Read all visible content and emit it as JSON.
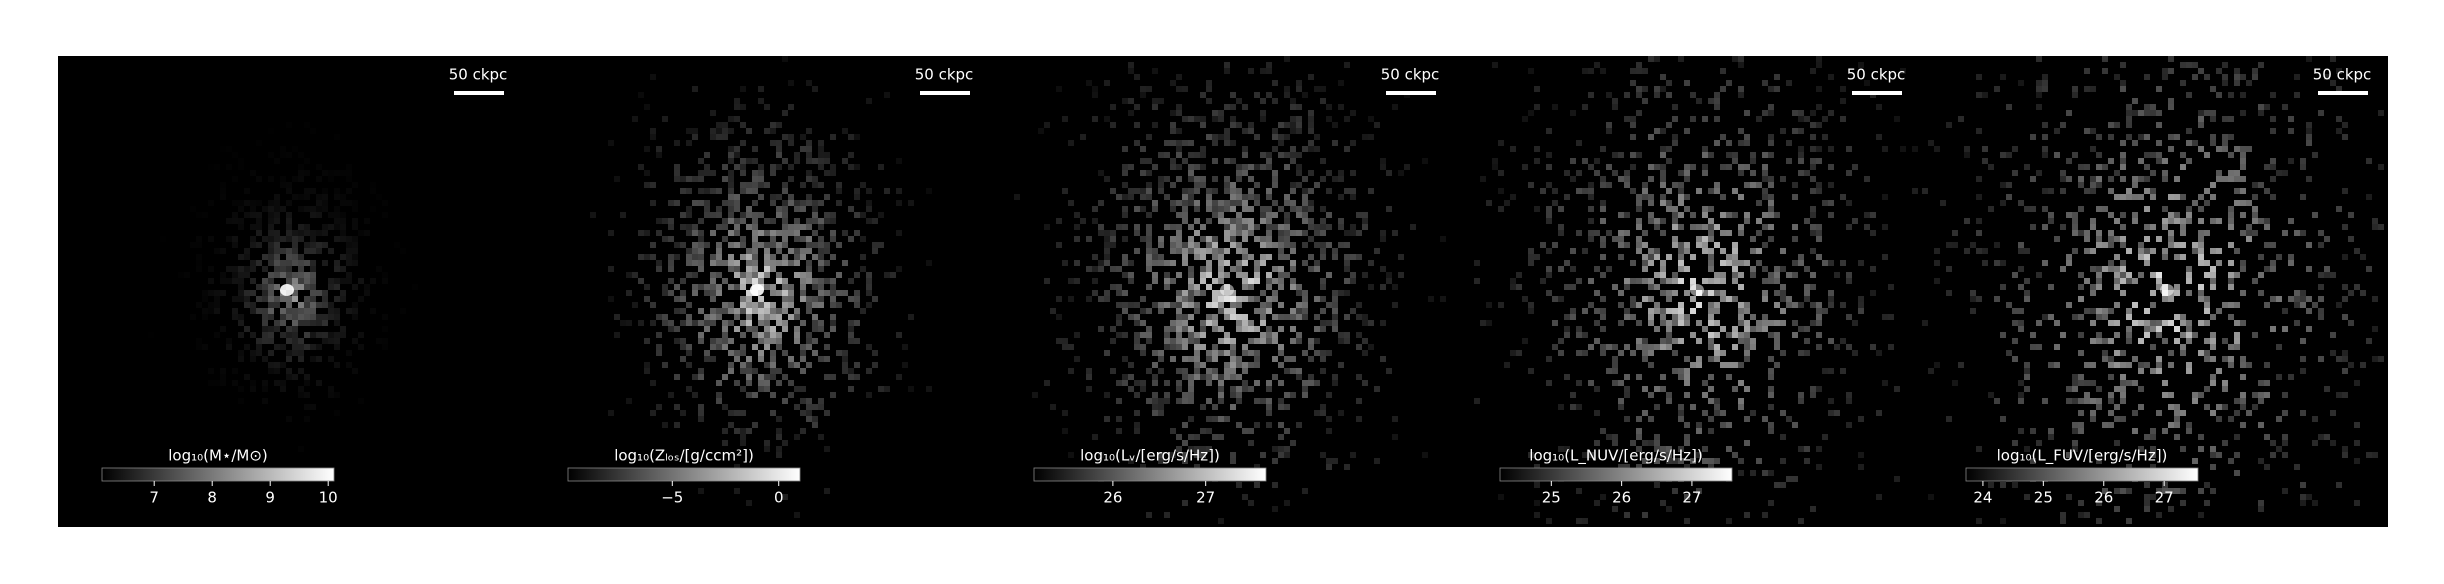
{
  "chart_data": [
    {
      "type": "image",
      "scale_bar_label": "50 ckpc",
      "colorbar_label": "log₁₀(M⋆/M⊙)",
      "clim": [
        6.1,
        10.1
      ],
      "cticks": [
        7,
        8,
        9,
        10
      ]
    },
    {
      "type": "image",
      "scale_bar_label": "50 ckpc",
      "colorbar_label": "log₁₀(Zₗₒₛ/[g/ccm²])",
      "clim": [
        -9.9,
        1
      ],
      "cticks": [
        {
          "value": -5,
          "label": "−5"
        },
        0
      ]
    },
    {
      "type": "image",
      "scale_bar_label": "50 ckpc",
      "colorbar_label": "log₁₀(Lᵥ/[erg/s/Hz])",
      "clim": [
        25.15,
        27.65
      ],
      "cticks": [
        26,
        27
      ]
    },
    {
      "type": "image",
      "scale_bar_label": "50 ckpc",
      "colorbar_label": "log₁₀(L_NUV/[erg/s/Hz])",
      "clim": [
        24.27,
        27.57
      ],
      "cticks": [
        25,
        26,
        27
      ]
    },
    {
      "type": "image",
      "scale_bar_label": "50 ckpc",
      "colorbar_label": "log₁₀(L_FUV/[erg/s/Hz])",
      "clim": [
        23.72,
        27.56
      ],
      "cticks": [
        24,
        25,
        26,
        27
      ]
    }
  ]
}
